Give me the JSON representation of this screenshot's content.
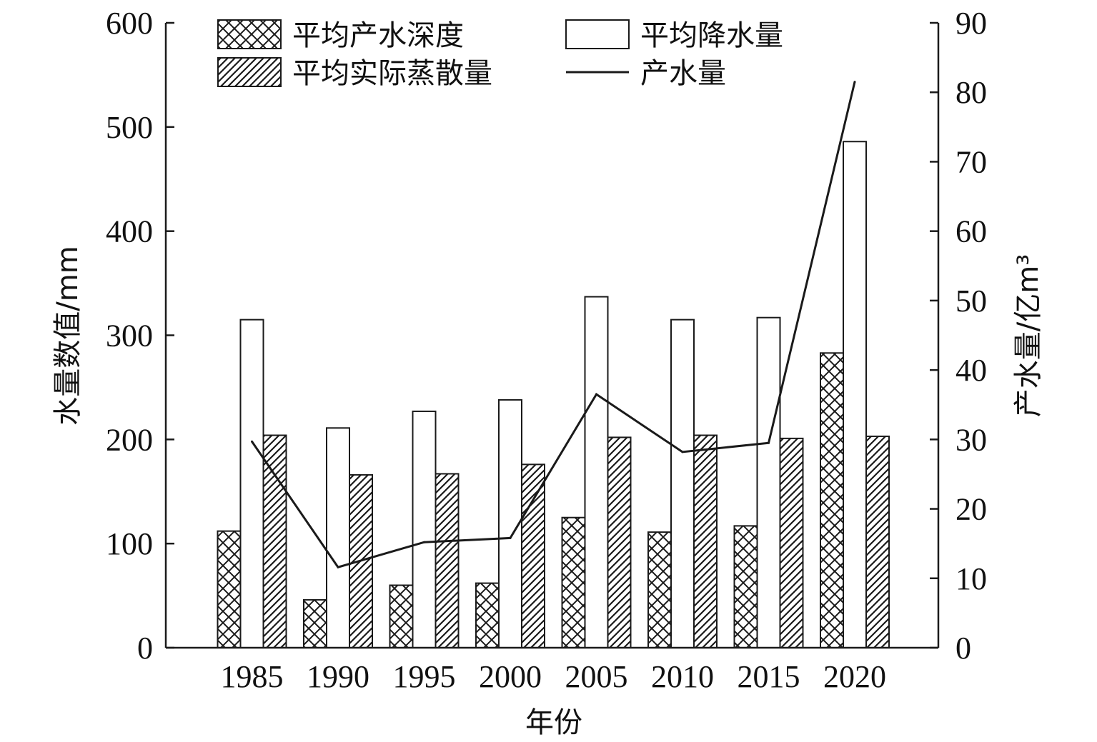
{
  "chart_data": {
    "type": "bar",
    "xlabel": "年份",
    "ylabel": "水量数值/mm",
    "y2label": "产水量/亿m³",
    "ylim": [
      0,
      600
    ],
    "y2lim": [
      0,
      90
    ],
    "yticks": [
      0,
      100,
      200,
      300,
      400,
      500,
      600
    ],
    "y2ticks": [
      0,
      10,
      20,
      30,
      40,
      50,
      60,
      70,
      80,
      90
    ],
    "categories": [
      "1985",
      "1990",
      "1995",
      "2000",
      "2005",
      "2010",
      "2015",
      "2020"
    ],
    "grid": false,
    "legend_position": "top",
    "series": [
      {
        "name": "平均产水深度",
        "type": "bar",
        "pattern": "crosshatch",
        "axis": "left",
        "values": [
          112,
          46,
          60,
          62,
          125,
          111,
          117,
          283
        ]
      },
      {
        "name": "平均降水量",
        "type": "bar",
        "pattern": "none",
        "axis": "left",
        "values": [
          315,
          211,
          227,
          238,
          337,
          315,
          317,
          486
        ]
      },
      {
        "name": "平均实际蒸散量",
        "type": "bar",
        "pattern": "diagonal",
        "axis": "left",
        "values": [
          204,
          166,
          167,
          176,
          202,
          204,
          201,
          203
        ]
      },
      {
        "name": "产水量",
        "type": "line",
        "axis": "right",
        "values": [
          29.7,
          11.6,
          15.2,
          15.8,
          36.5,
          28.2,
          29.5,
          81.5
        ]
      }
    ],
    "colors": {
      "stroke": "#1a1a1a",
      "fill": "#ffffff"
    }
  }
}
